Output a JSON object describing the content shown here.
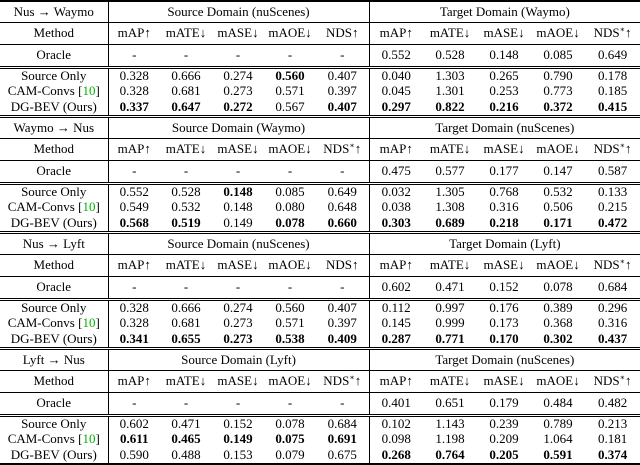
{
  "colors": {
    "citation_green": "#00B200",
    "rule_black": "#000000",
    "background": "#FFFFFF"
  },
  "table": {
    "method_header": "Method",
    "metric_headers": [
      "mAP↑",
      "mATE↓",
      "mASE↓",
      "mAOE↓"
    ],
    "nds_base": "NDS",
    "nds_star": "∗",
    "nds_arrow": "↑",
    "cite_open": "[",
    "cite_close": "]",
    "sections": [
      {
        "route": "Nus → Waymo",
        "source_title": "Source Domain (nuScenes)",
        "target_title": "Target Domain (Waymo)",
        "source_nds_star": false,
        "target_nds_star": true,
        "rows": [
          {
            "method": "Oracle",
            "cite": null,
            "source": [
              "-",
              "-",
              "-",
              "-",
              "-"
            ],
            "target": [
              "0.552",
              "0.528",
              "0.148",
              "0.085",
              "0.649"
            ]
          },
          {
            "method": "Source Only",
            "cite": null,
            "source": [
              "0.328",
              "0.666",
              "0.274",
              "0.560",
              "0.407"
            ],
            "source_bold": [
              0,
              0,
              0,
              1,
              0
            ],
            "target": [
              "0.040",
              "1.303",
              "0.265",
              "0.790",
              "0.178"
            ]
          },
          {
            "method": "CAM-Convs",
            "cite": "10",
            "source": [
              "0.328",
              "0.681",
              "0.273",
              "0.571",
              "0.397"
            ],
            "target": [
              "0.045",
              "1.301",
              "0.253",
              "0.773",
              "0.185"
            ]
          },
          {
            "method": "DG-BEV (Ours)",
            "cite": null,
            "source": [
              "0.337",
              "0.647",
              "0.272",
              "0.567",
              "0.407"
            ],
            "source_bold": [
              1,
              1,
              1,
              0,
              1
            ],
            "target": [
              "0.297",
              "0.822",
              "0.216",
              "0.372",
              "0.415"
            ],
            "target_bold": [
              1,
              1,
              1,
              1,
              1
            ]
          }
        ]
      },
      {
        "route": "Waymo → Nus",
        "source_title": "Source Domain (Waymo)",
        "target_title": "Target Domain (nuScenes)",
        "source_nds_star": true,
        "target_nds_star": true,
        "rows": [
          {
            "method": "Oracle",
            "cite": null,
            "source": [
              "-",
              "-",
              "-",
              "-",
              "-"
            ],
            "target": [
              "0.475",
              "0.577",
              "0.177",
              "0.147",
              "0.587"
            ]
          },
          {
            "method": "Source Only",
            "cite": null,
            "source": [
              "0.552",
              "0.528",
              "0.148",
              "0.085",
              "0.649"
            ],
            "source_bold": [
              0,
              0,
              1,
              0,
              0
            ],
            "target": [
              "0.032",
              "1.305",
              "0.768",
              "0.532",
              "0.133"
            ]
          },
          {
            "method": "CAM-Convs",
            "cite": "10",
            "source": [
              "0.549",
              "0.532",
              "0.148",
              "0.080",
              "0.648"
            ],
            "target": [
              "0.038",
              "1.308",
              "0.316",
              "0.506",
              "0.215"
            ]
          },
          {
            "method": "DG-BEV (Ours)",
            "cite": null,
            "source": [
              "0.568",
              "0.519",
              "0.149",
              "0.078",
              "0.660"
            ],
            "source_bold": [
              1,
              1,
              0,
              1,
              1
            ],
            "target": [
              "0.303",
              "0.689",
              "0.218",
              "0.171",
              "0.472"
            ],
            "target_bold": [
              1,
              1,
              1,
              1,
              1
            ]
          }
        ]
      },
      {
        "route": "Nus → Lyft",
        "source_title": "Source Domain (nuScenes)",
        "target_title": "Target Domain (Lyft)",
        "source_nds_star": false,
        "target_nds_star": true,
        "rows": [
          {
            "method": "Oracle",
            "cite": null,
            "source": [
              "-",
              "-",
              "-",
              "-",
              "-"
            ],
            "target": [
              "0.602",
              "0.471",
              "0.152",
              "0.078",
              "0.684"
            ]
          },
          {
            "method": "Source Only",
            "cite": null,
            "source": [
              "0.328",
              "0.666",
              "0.274",
              "0.560",
              "0.407"
            ],
            "target": [
              "0.112",
              "0.997",
              "0.176",
              "0.389",
              "0.296"
            ]
          },
          {
            "method": "CAM-Convs",
            "cite": "10",
            "source": [
              "0.328",
              "0.681",
              "0.273",
              "0.571",
              "0.397"
            ],
            "target": [
              "0.145",
              "0.999",
              "0.173",
              "0.368",
              "0.316"
            ]
          },
          {
            "method": "DG-BEV (Ours)",
            "cite": null,
            "source": [
              "0.341",
              "0.655",
              "0.273",
              "0.538",
              "0.409"
            ],
            "source_bold": [
              1,
              1,
              1,
              1,
              1
            ],
            "target": [
              "0.287",
              "0.771",
              "0.170",
              "0.302",
              "0.437"
            ],
            "target_bold": [
              1,
              1,
              1,
              1,
              1
            ]
          }
        ]
      },
      {
        "route": "Lyft → Nus",
        "source_title": "Source Domain (Lyft)",
        "target_title": "Target Domain (nuScenes)",
        "source_nds_star": true,
        "target_nds_star": true,
        "rows": [
          {
            "method": "Oracle",
            "cite": null,
            "source": [
              "-",
              "-",
              "-",
              "-",
              "-"
            ],
            "target": [
              "0.401",
              "0.651",
              "0.179",
              "0.484",
              "0.482"
            ]
          },
          {
            "method": "Source Only",
            "cite": null,
            "source": [
              "0.602",
              "0.471",
              "0.152",
              "0.078",
              "0.684"
            ],
            "target": [
              "0.102",
              "1.143",
              "0.239",
              "0.789",
              "0.213"
            ]
          },
          {
            "method": "CAM-Convs",
            "cite": "10",
            "source": [
              "0.611",
              "0.465",
              "0.149",
              "0.075",
              "0.691"
            ],
            "source_bold": [
              1,
              1,
              1,
              1,
              1
            ],
            "target": [
              "0.098",
              "1.198",
              "0.209",
              "1.064",
              "0.181"
            ]
          },
          {
            "method": "DG-BEV (Ours)",
            "cite": null,
            "source": [
              "0.590",
              "0.488",
              "0.153",
              "0.079",
              "0.675"
            ],
            "target": [
              "0.268",
              "0.764",
              "0.205",
              "0.591",
              "0.374"
            ],
            "target_bold": [
              1,
              1,
              1,
              1,
              1
            ]
          }
        ]
      }
    ]
  }
}
